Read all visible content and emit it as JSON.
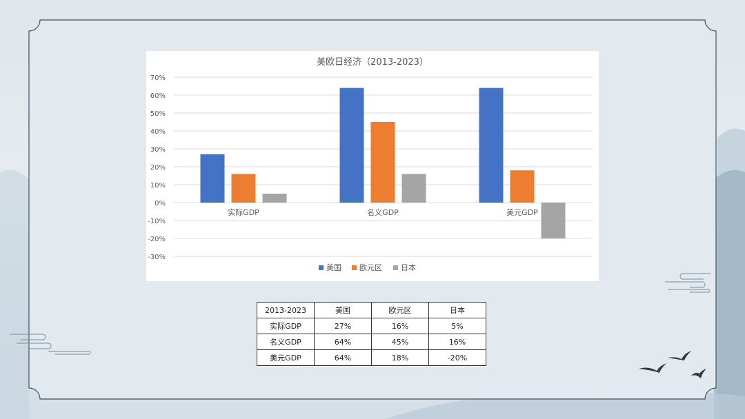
{
  "chart_data": {
    "type": "bar",
    "title": "美欧日经济（2013-2023）",
    "categories": [
      "实际GDP",
      "名义GDP",
      "美元GDP"
    ],
    "series": [
      {
        "name": "美国",
        "color": "#4472c4",
        "values": [
          27,
          64,
          64
        ]
      },
      {
        "name": "欧元区",
        "color": "#ed7d31",
        "values": [
          16,
          45,
          18
        ]
      },
      {
        "name": "日本",
        "color": "#a5a5a5",
        "values": [
          5,
          16,
          -20
        ]
      }
    ],
    "ylim": [
      -30,
      70
    ],
    "yticks": [
      "70%",
      "60%",
      "50%",
      "40%",
      "30%",
      "20%",
      "10%",
      "0%",
      "-10%",
      "-20%",
      "-30%"
    ],
    "grid": true,
    "legend": "bottom"
  },
  "table": {
    "header": [
      "2013-2023",
      "美国",
      "欧元区",
      "日本"
    ],
    "rows": [
      [
        "实际GDP",
        "27%",
        "16%",
        "5%"
      ],
      [
        "名义GDP",
        "64%",
        "45%",
        "16%"
      ],
      [
        "美元GDP",
        "64%",
        "18%",
        "-20%"
      ]
    ]
  }
}
